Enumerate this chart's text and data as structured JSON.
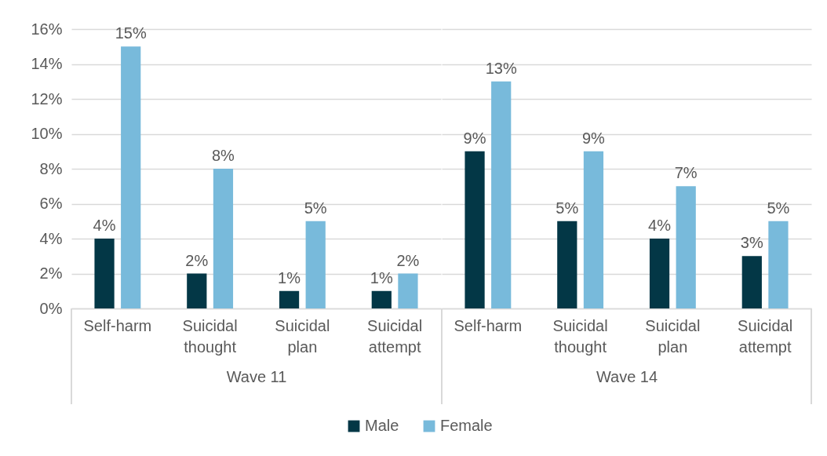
{
  "chart_data": [
    {
      "type": "bar",
      "xlabel": "Wave 11",
      "categories": [
        "Self-harm",
        "Suicidal thought",
        "Suicidal plan",
        "Suicidal attempt"
      ],
      "series": [
        {
          "name": "Male",
          "color": "#033746",
          "values": [
            4,
            2,
            1,
            1
          ],
          "value_labels": [
            "4%",
            "2%",
            "1%",
            "1%"
          ]
        },
        {
          "name": "Female",
          "color": "#78badb",
          "values": [
            15,
            8,
            5,
            2
          ],
          "value_labels": [
            "15%",
            "8%",
            "5%",
            "2%"
          ]
        }
      ],
      "ylim": [
        0,
        16
      ],
      "yticks": [
        {
          "value": 0,
          "label": "0%"
        },
        {
          "value": 2,
          "label": "2%"
        },
        {
          "value": 4,
          "label": "4%"
        },
        {
          "value": 6,
          "label": "6%"
        },
        {
          "value": 8,
          "label": "8%"
        },
        {
          "value": 10,
          "label": "10%"
        },
        {
          "value": 12,
          "label": "12%"
        },
        {
          "value": 14,
          "label": "14%"
        },
        {
          "value": 16,
          "label": "16%"
        }
      ],
      "grid": "y",
      "legend": "bottom"
    },
    {
      "type": "bar",
      "xlabel": "Wave 14",
      "categories": [
        "Self-harm",
        "Suicidal thought",
        "Suicidal plan",
        "Suicidal attempt"
      ],
      "series": [
        {
          "name": "Male",
          "color": "#033746",
          "values": [
            9,
            5,
            4,
            3
          ],
          "value_labels": [
            "9%",
            "5%",
            "4%",
            "3%"
          ]
        },
        {
          "name": "Female",
          "color": "#78badb",
          "values": [
            13,
            9,
            7,
            5
          ],
          "value_labels": [
            "13%",
            "9%",
            "7%",
            "5%"
          ]
        }
      ],
      "ylim": [
        0,
        16
      ],
      "yticks": [
        {
          "value": 0,
          "label": "0%"
        },
        {
          "value": 2,
          "label": "2%"
        },
        {
          "value": 4,
          "label": "4%"
        },
        {
          "value": 6,
          "label": "6%"
        },
        {
          "value": 8,
          "label": "8%"
        },
        {
          "value": 10,
          "label": "10%"
        },
        {
          "value": 12,
          "label": "12%"
        },
        {
          "value": 14,
          "label": "14%"
        },
        {
          "value": 16,
          "label": "16%"
        }
      ],
      "grid": "y",
      "tick_labels": "x"
    }
  ]
}
